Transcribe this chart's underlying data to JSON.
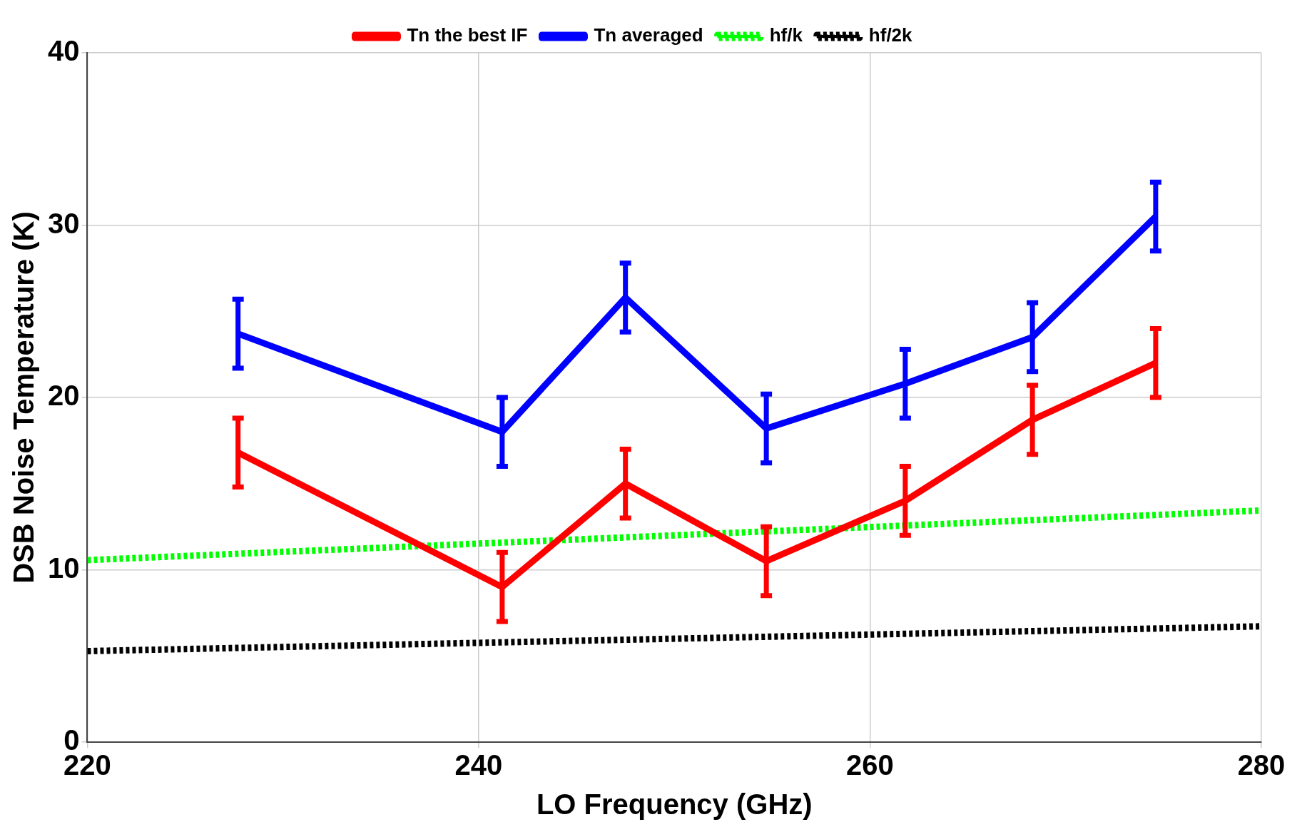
{
  "chart_data": {
    "type": "line",
    "xlabel": "LO Frequency (GHz)",
    "ylabel": "DSB Noise Temperature (K)",
    "xlim": [
      220,
      280
    ],
    "xticks": [
      220,
      240,
      260,
      280
    ],
    "ylim": [
      0,
      40
    ],
    "yticks": [
      0,
      10,
      20,
      30,
      40
    ],
    "grid": true,
    "legend": "top",
    "marker": "none",
    "series": [
      {
        "name": "Tn the best IF",
        "color": "#ff0000",
        "x": [
          227.7,
          241.2,
          247.5,
          254.7,
          261.8,
          268.3,
          274.6
        ],
        "values": [
          16.8,
          9.0,
          15.0,
          10.5,
          14.0,
          18.7,
          22.0
        ],
        "errors": [
          2,
          2,
          2,
          2,
          2,
          2,
          2
        ],
        "line_style": "solid"
      },
      {
        "name": "Tn averaged",
        "color": "#0000ff",
        "x": [
          227.7,
          241.2,
          247.5,
          254.7,
          261.8,
          268.3,
          274.6
        ],
        "values": [
          23.7,
          18.0,
          25.8,
          18.2,
          20.8,
          23.5,
          30.5
        ],
        "errors": [
          2,
          2,
          2,
          2,
          2,
          2,
          2
        ],
        "line_style": "solid"
      },
      {
        "name": "hf/k",
        "color": "#00ff00",
        "x": [
          220,
          280
        ],
        "values": [
          10.56,
          13.44
        ],
        "line_style": "dotted"
      },
      {
        "name": "hf/2k",
        "color": "#000000",
        "x": [
          220,
          280
        ],
        "values": [
          5.28,
          6.72
        ],
        "line_style": "dotted"
      }
    ]
  }
}
